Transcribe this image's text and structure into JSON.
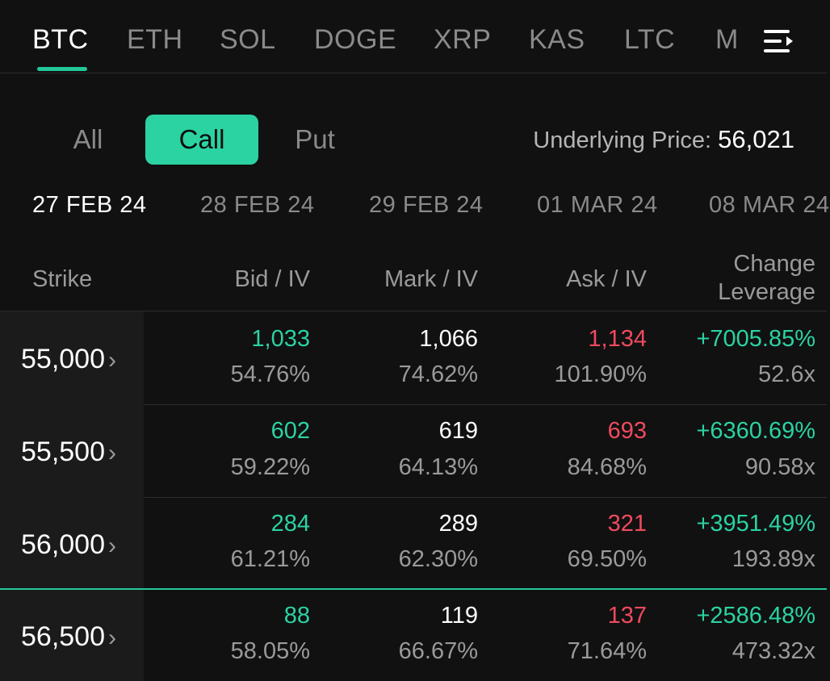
{
  "asset_tabs": [
    "BTC",
    "ETH",
    "SOL",
    "DOGE",
    "XRP",
    "KAS",
    "LTC",
    "M"
  ],
  "option_types": [
    "All",
    "Call",
    "Put"
  ],
  "underlying": {
    "label": "Underlying Price:",
    "value": "56,021"
  },
  "expiries": [
    "27 FEB 24",
    "28 FEB 24",
    "29 FEB 24",
    "01 MAR 24",
    "08 MAR 24"
  ],
  "table_headers": {
    "strike": "Strike",
    "bid": "Bid / IV",
    "mark": "Mark / IV",
    "ask": "Ask / IV",
    "change": "Change",
    "leverage": "Leverage"
  },
  "rows": [
    {
      "strike": "55,000",
      "bid": "1,033",
      "bid_iv": "54.76%",
      "mark": "1,066",
      "mark_iv": "74.62%",
      "ask": "1,134",
      "ask_iv": "101.90%",
      "change": "+7005.85%",
      "leverage": "52.6x"
    },
    {
      "strike": "55,500",
      "bid": "602",
      "bid_iv": "59.22%",
      "mark": "619",
      "mark_iv": "64.13%",
      "ask": "693",
      "ask_iv": "84.68%",
      "change": "+6360.69%",
      "leverage": "90.58x"
    },
    {
      "strike": "56,000",
      "bid": "284",
      "bid_iv": "61.21%",
      "mark": "289",
      "mark_iv": "62.30%",
      "ask": "321",
      "ask_iv": "69.50%",
      "change": "+3951.49%",
      "leverage": "193.89x"
    },
    {
      "strike": "56,500",
      "bid": "88",
      "bid_iv": "58.05%",
      "mark": "119",
      "mark_iv": "66.67%",
      "ask": "137",
      "ask_iv": "71.64%",
      "change": "+2586.48%",
      "leverage": "473.32x"
    }
  ],
  "colors": {
    "accent": "#2bd2a2",
    "bid": "#2bd2a2",
    "ask": "#f04a5e",
    "background": "#111111"
  },
  "icons": {
    "menu": "menu-lines-icon",
    "chevron": "chevron-right-icon"
  }
}
